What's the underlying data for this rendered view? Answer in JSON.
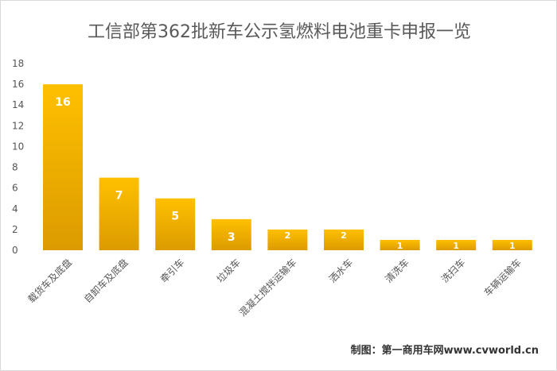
{
  "chart_data": {
    "type": "bar",
    "title": "工信部第362批新车公示氢燃料电池重卡申报一览",
    "categories": [
      "载货车及底盘",
      "自卸车及底盘",
      "牵引车",
      "垃圾车",
      "混凝土搅拌运输车",
      "洒水车",
      "清洗车",
      "洗扫车",
      "车辆运输车"
    ],
    "values": [
      16,
      7,
      5,
      3,
      2,
      2,
      1,
      1,
      1
    ],
    "ylim": [
      0,
      18
    ],
    "yticks": [
      0,
      2,
      4,
      6,
      8,
      10,
      12,
      14,
      16,
      18
    ],
    "xlabel": "",
    "ylabel": "",
    "grid": false,
    "legend": "none",
    "colors": {
      "bar_top": "#ffc000",
      "bar_bottom": "#dc9b00",
      "label": "#ffffff"
    }
  },
  "credit": "制图：第一商用车网www.cvworld.cn"
}
